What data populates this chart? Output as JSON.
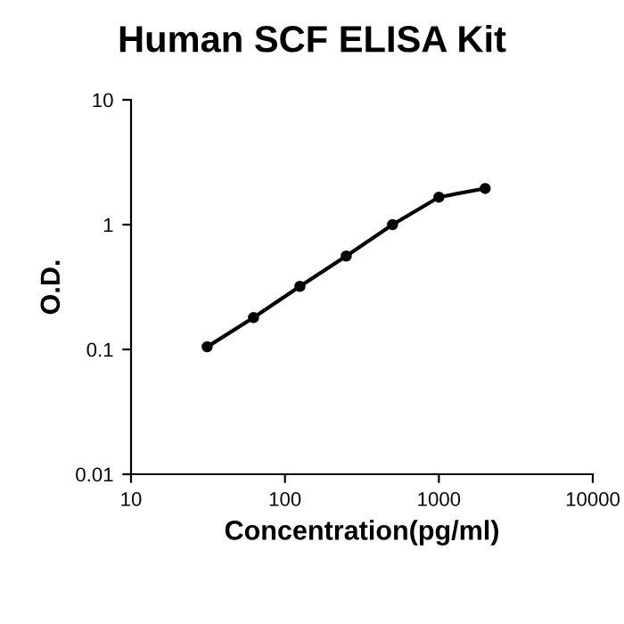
{
  "chart_data": {
    "type": "line",
    "title": "Human SCF ELISA Kit",
    "xlabel": "Concentration(pg/ml)",
    "ylabel": "O.D.",
    "x": [
      31.25,
      62.5,
      125,
      250,
      500,
      1000,
      2000
    ],
    "series": [
      {
        "color": "#000000",
        "values": [
          0.105,
          0.18,
          0.32,
          0.56,
          1.0,
          1.66,
          1.95
        ]
      }
    ],
    "log": "xy",
    "xlim": [
      10,
      10000
    ],
    "ylim": [
      0.01,
      10
    ],
    "xticks": [
      10,
      100,
      1000,
      10000
    ],
    "yticks": [
      0.01,
      0.1,
      1,
      10
    ],
    "marker": "circle",
    "line_style": "solid",
    "grid": false,
    "legend": false
  }
}
